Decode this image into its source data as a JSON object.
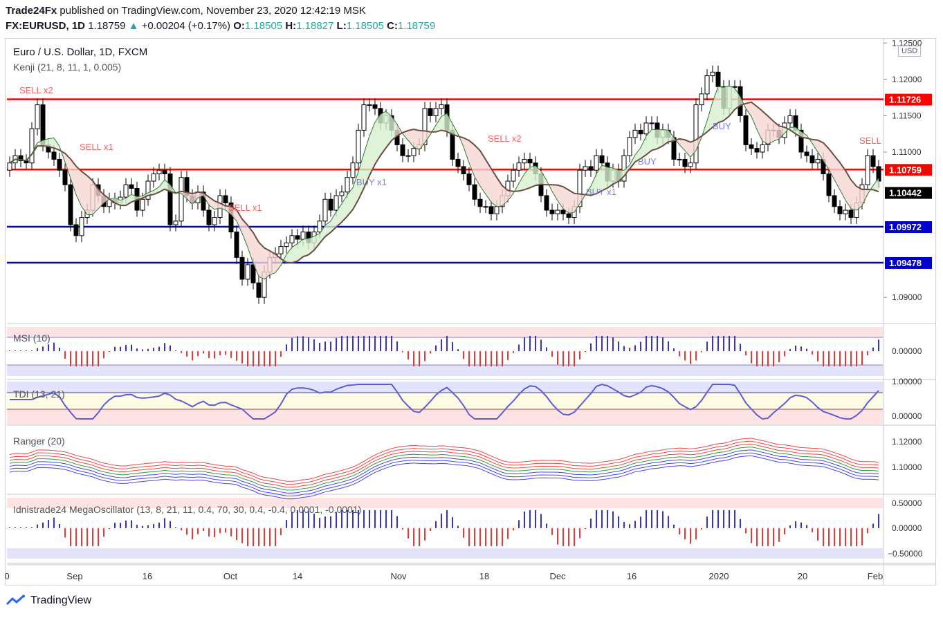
{
  "header": {
    "publisher": "Trade24Fx",
    "published_text": "published on TradingView.com, November 23, 2020 12:42:19 MSK",
    "symbol": "FX:EURUSD, 1D",
    "last": "1.18759",
    "change": "+0.00204 (+0.17%)",
    "o_label": "O:",
    "o": "1.18505",
    "h_label": "H:",
    "h": "1.18827",
    "l_label": "L:",
    "l": "1.18505",
    "c_label": "C:",
    "c": "1.18759"
  },
  "main_pane": {
    "title": "Euro / U.S. Dollar, 1D, FXCM",
    "indicator": "Kenji (21, 8, 11, 1, 0.005)",
    "currency_button": "USD"
  },
  "panes": {
    "msi": "MSI (10)",
    "tdi": "TDI (13, 21)",
    "ranger": "Ranger (20)",
    "mega": "Idnistrade24 MegaOscillator (13, 8, 21, 11, 0.4, 70, 30, 0.4, -0.4, 0.0001, -0.0001)"
  },
  "footer": {
    "brand": "TradingView"
  },
  "colors": {
    "bull": "#ffffff",
    "bear": "#000000",
    "red_level": "#ff0000",
    "blue_level": "#0000cc",
    "sell_text": "#f06060",
    "buy_text": "#7b7be8"
  },
  "chart_data": {
    "type": "candlestick",
    "x_tick_labels": [
      "0",
      "Sep",
      "16",
      "Oct",
      "14",
      "Nov",
      "18",
      "Dec",
      "16",
      "2020",
      "20",
      "Feb"
    ],
    "y_ticks": [
      "1.12500",
      "1.12000",
      "1.11500",
      "1.11000",
      "1.09000"
    ],
    "ylim": [
      1.0865,
      1.1255
    ],
    "levels": [
      {
        "value": 1.11726,
        "label": "1.11726",
        "color": "#ff0000"
      },
      {
        "value": 1.10759,
        "label": "1.10759",
        "color": "#ff0000"
      },
      {
        "value": 1.10442,
        "label": "1.10442",
        "color": "#000000"
      },
      {
        "value": 1.09972,
        "label": "1.09972",
        "color": "#0000cc"
      },
      {
        "value": 1.09478,
        "label": "1.09478",
        "color": "#0000cc"
      }
    ],
    "closes": [
      1.1085,
      1.1095,
      1.1088,
      1.1085,
      1.1132,
      1.1165,
      1.111,
      1.11,
      1.109,
      1.1075,
      1.1055,
      1.1,
      1.0985,
      1.101,
      1.102,
      1.1055,
      1.104,
      1.1025,
      1.1035,
      1.103,
      1.1038,
      1.1055,
      1.105,
      1.102,
      1.1035,
      1.106,
      1.107,
      1.1075,
      1.107,
      1.1,
      1.1005,
      1.1065,
      1.104,
      1.103,
      1.1045,
      1.102,
      1.1,
      1.101,
      1.104,
      1.103,
      1.099,
      1.0955,
      1.0925,
      1.0945,
      1.092,
      1.09,
      1.0935,
      1.0955,
      1.096,
      1.097,
      1.0975,
      1.0985,
      1.098,
      1.099,
      1.0975,
      1.099,
      1.1005,
      1.1035,
      1.102,
      1.104,
      1.1045,
      1.1065,
      1.1085,
      1.113,
      1.1165,
      1.1165,
      1.116,
      1.114,
      1.115,
      1.113,
      1.111,
      1.1095,
      1.1095,
      1.1105,
      1.111,
      1.116,
      1.115,
      1.116,
      1.1165,
      1.113,
      1.109,
      1.108,
      1.107,
      1.1055,
      1.1035,
      1.1025,
      1.1025,
      1.1015,
      1.1025,
      1.104,
      1.106,
      1.1075,
      1.1085,
      1.109,
      1.1085,
      1.107,
      1.104,
      1.102,
      1.1015,
      1.102,
      1.1015,
      1.101,
      1.1025,
      1.1075,
      1.108,
      1.1075,
      1.1095,
      1.1085,
      1.106,
      1.1075,
      1.106,
      1.1095,
      1.112,
      1.113,
      1.1125,
      1.114,
      1.114,
      1.112,
      1.113,
      1.112,
      1.109,
      1.109,
      1.108,
      1.1085,
      1.1165,
      1.118,
      1.1205,
      1.121,
      1.119,
      1.116,
      1.119,
      1.119,
      1.115,
      1.111,
      1.1105,
      1.11,
      1.111,
      1.113,
      1.113,
      1.112,
      1.114,
      1.115,
      1.113,
      1.11,
      1.1095,
      1.1085,
      1.109,
      1.107,
      1.104,
      1.1025,
      1.1015,
      1.102,
      1.101,
      1.103,
      1.1055,
      1.1095,
      1.108,
      1.106
    ]
  }
}
